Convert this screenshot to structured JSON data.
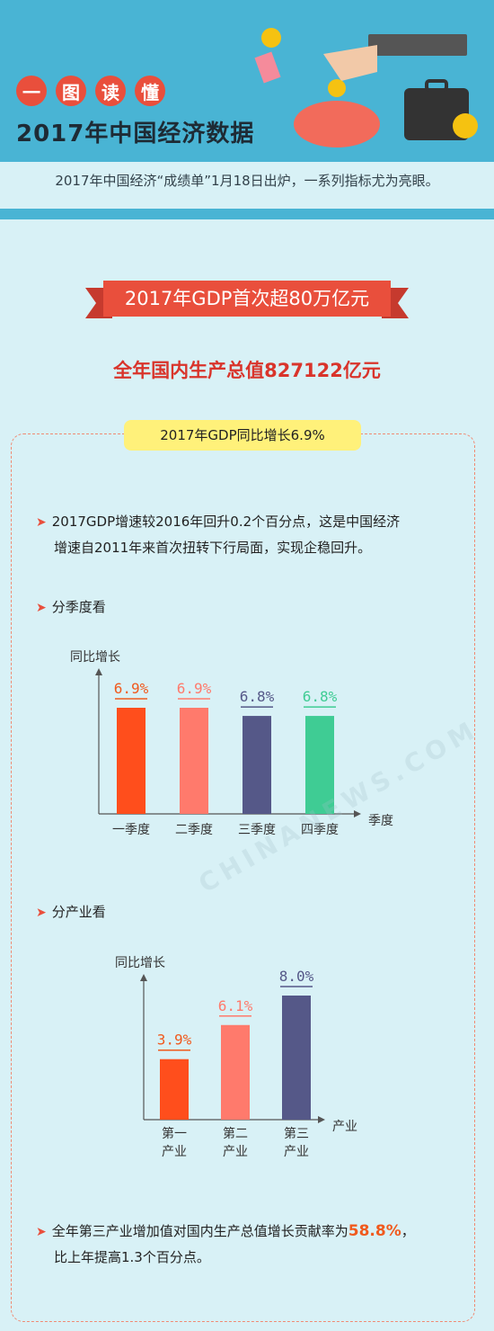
{
  "header": {
    "tags": [
      "一",
      "图",
      "读",
      "懂"
    ],
    "title": "2017年中国经济数据",
    "subtitle": "2017年中国经济“成绩单”1月18日出炉，一系列指标尤为亮眼。"
  },
  "ribbon": {
    "text": "2017年GDP首次超80万亿元"
  },
  "big_stat": "全年国内生产总值827122亿元",
  "pill": "2017年GDP同比增长6.9%",
  "para1_line1": "2017GDP增速较2016年回升0.2个百分点，这是中国经济",
  "para1_line2": "增速自2011年来首次扭转下行局面，实现企稳回升。",
  "section_quarter": "分季度看",
  "section_industry": "分产业看",
  "para2_line1_pre": "全年第三产业增加值对国内生产总值增长贡献率为",
  "para2_highlight": "58.8%",
  "para2_line1_post": "，",
  "para2_line2": "比上年提高1.3个百分点。",
  "watermark": "CHINANEWS.COM",
  "colors": {
    "header_bg": "#49b4d4",
    "page_bg": "#d8f1f6",
    "red": "#e94f3c",
    "orange": "#ff4e1c",
    "salmon": "#ff7a6c",
    "navy": "#555888",
    "green": "#3fcc94"
  },
  "chart_data": [
    {
      "type": "bar",
      "ylabel": "同比增长",
      "xlabel": "季度",
      "categories": [
        "一季度",
        "二季度",
        "三季度",
        "四季度"
      ],
      "values": [
        6.9,
        6.9,
        6.8,
        6.8
      ],
      "data_labels": [
        "6.9%",
        "6.9%",
        "6.8%",
        "6.8%"
      ],
      "colors": [
        "#ff4e1c",
        "#ff7a6c",
        "#555888",
        "#3fcc94"
      ],
      "grid": false
    },
    {
      "type": "bar",
      "ylabel": "同比增长",
      "xlabel": "产业",
      "categories": [
        "第一产业",
        "第二产业",
        "第三产业"
      ],
      "category_lines": [
        [
          "第一",
          "产业"
        ],
        [
          "第二",
          "产业"
        ],
        [
          "第三",
          "产业"
        ]
      ],
      "values": [
        3.9,
        6.1,
        8.0
      ],
      "data_labels": [
        "3.9%",
        "6.1%",
        "8.0%"
      ],
      "colors": [
        "#ff4e1c",
        "#ff7a6c",
        "#555888"
      ],
      "grid": false
    }
  ]
}
